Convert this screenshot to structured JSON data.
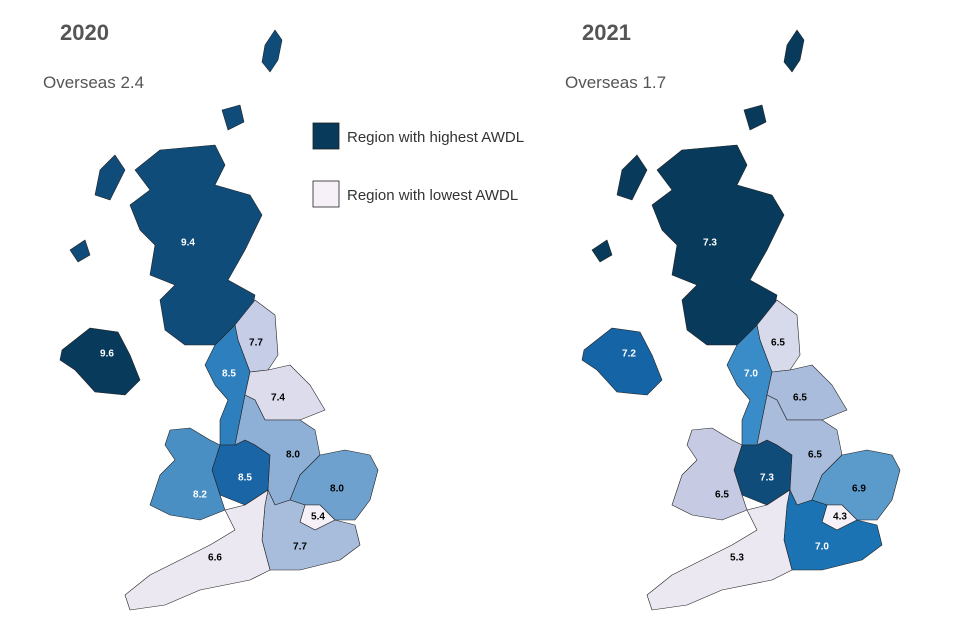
{
  "legend": [
    {
      "label": "Region with highest AWDL",
      "color": "#083a5c"
    },
    {
      "label": "Region with lowest AWDL",
      "color": "#f6f1f8"
    }
  ],
  "maps": [
    {
      "year": "2020",
      "overseas": "Overseas 2.4",
      "regions": [
        {
          "label": "9.4",
          "color": "#0f4c7a",
          "text_color": "#fff"
        },
        {
          "label": "9.6",
          "color": "#083a5c",
          "text_color": "#fff"
        },
        {
          "label": "7.7",
          "color": "#c6cde6",
          "text_color": "#000"
        },
        {
          "label": "8.5",
          "color": "#2d7fbd",
          "text_color": "#fff"
        },
        {
          "label": "7.4",
          "color": "#dcdcec",
          "text_color": "#000"
        },
        {
          "label": "8.5",
          "color": "#1a65a6",
          "text_color": "#fff"
        },
        {
          "label": "8.0",
          "color": "#8fb0d6",
          "text_color": "#000"
        },
        {
          "label": "8.2",
          "color": "#4a8fc4",
          "text_color": "#fff"
        },
        {
          "label": "8.0",
          "color": "#6fa1cf",
          "text_color": "#000"
        },
        {
          "label": "5.4",
          "color": "#f6f1f8",
          "text_color": "#000"
        },
        {
          "label": "7.7",
          "color": "#a8bcdc",
          "text_color": "#000"
        },
        {
          "label": "6.6",
          "color": "#ece8f2",
          "text_color": "#000"
        }
      ]
    },
    {
      "year": "2021",
      "overseas": "Overseas 1.7",
      "regions": [
        {
          "label": "7.3",
          "color": "#083a5c",
          "text_color": "#fff"
        },
        {
          "label": "7.2",
          "color": "#1565a6",
          "text_color": "#fff"
        },
        {
          "label": "6.5",
          "color": "#d7daeb",
          "text_color": "#000"
        },
        {
          "label": "7.0",
          "color": "#3a8cc8",
          "text_color": "#fff"
        },
        {
          "label": "6.5",
          "color": "#a9bcdc",
          "text_color": "#000"
        },
        {
          "label": "7.3",
          "color": "#0f4c7a",
          "text_color": "#fff"
        },
        {
          "label": "6.5",
          "color": "#a9bcdc",
          "text_color": "#000"
        },
        {
          "label": "6.5",
          "color": "#c6cbe3",
          "text_color": "#000"
        },
        {
          "label": "6.9",
          "color": "#5b9bcc",
          "text_color": "#000"
        },
        {
          "label": "4.3",
          "color": "#f6f1f8",
          "text_color": "#000"
        },
        {
          "label": "7.0",
          "color": "#1b73b3",
          "text_color": "#fff"
        },
        {
          "label": "5.3",
          "color": "#ece8f2",
          "text_color": "#000"
        }
      ]
    }
  ]
}
